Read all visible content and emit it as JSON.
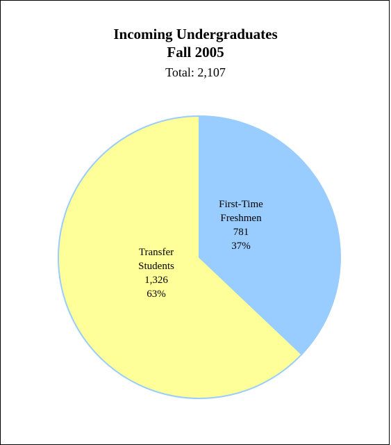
{
  "chart_data": {
    "type": "pie",
    "title": "Incoming Undergraduates",
    "title_line2": "Fall 2005",
    "subtitle": "Total: 2,107",
    "slices": [
      {
        "label_lines": [
          "First-Time",
          "Freshmen"
        ],
        "value": 781,
        "value_text": "781",
        "percent_text": "37%",
        "color": "#99ccff"
      },
      {
        "label_lines": [
          "Transfer",
          "Students"
        ],
        "value": 1326,
        "value_text": "1,326",
        "percent_text": "63%",
        "color": "#ffff99"
      }
    ],
    "edge_color": "#99ccff",
    "legend": "none"
  }
}
